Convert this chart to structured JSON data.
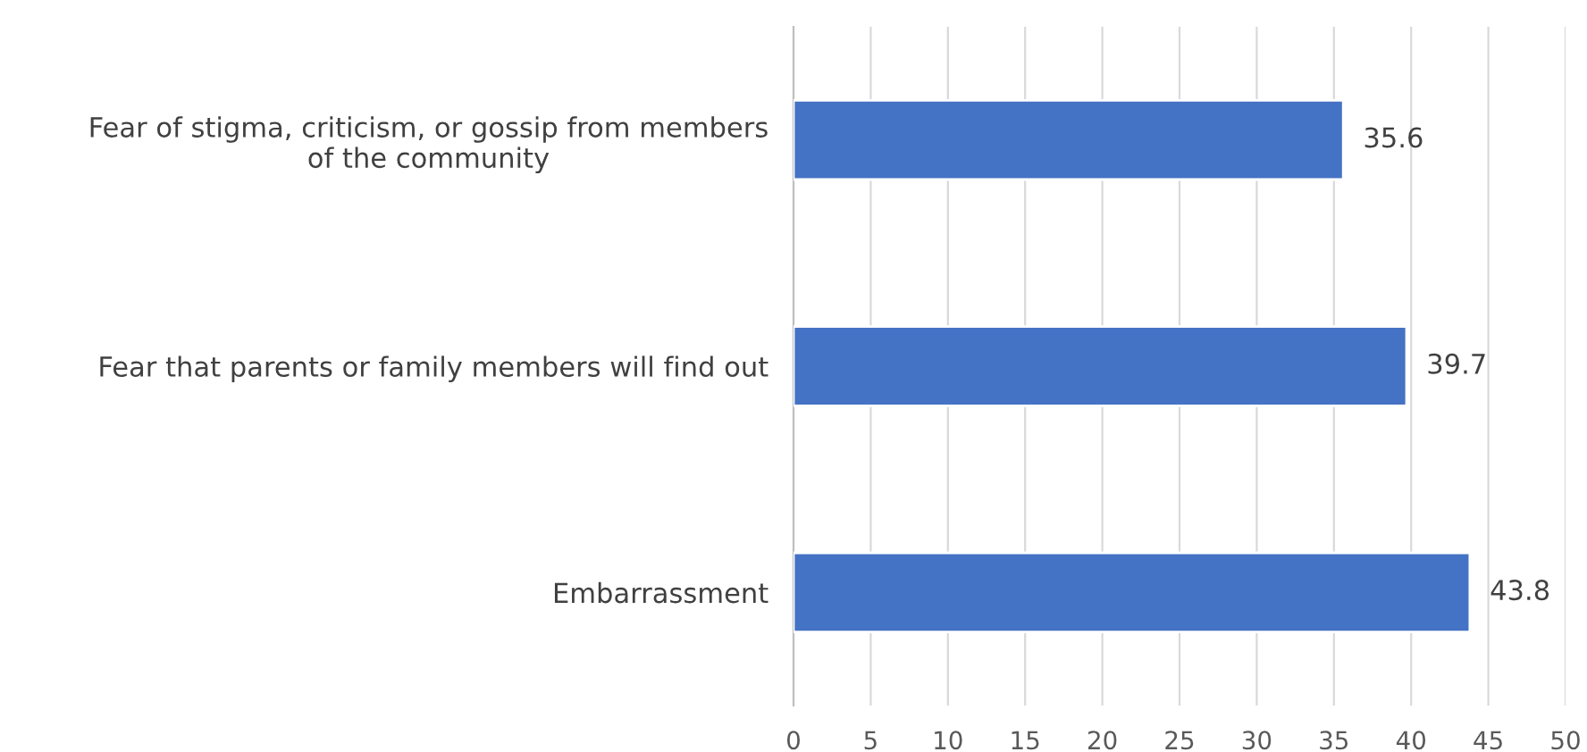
{
  "chart_data": {
    "type": "bar",
    "orientation": "horizontal",
    "categories": [
      "Fear of stigma, criticism, or gossip from members\nof the community",
      "Fear that parents or family members will find out",
      "Embarrassment"
    ],
    "values": [
      35.6,
      39.7,
      43.8
    ],
    "color": "#4472c4",
    "xlim": [
      0,
      50
    ],
    "xticks": [
      0,
      5,
      10,
      15,
      20,
      25,
      30,
      35,
      40,
      45,
      50
    ],
    "grid": "x",
    "data_labels": true
  }
}
